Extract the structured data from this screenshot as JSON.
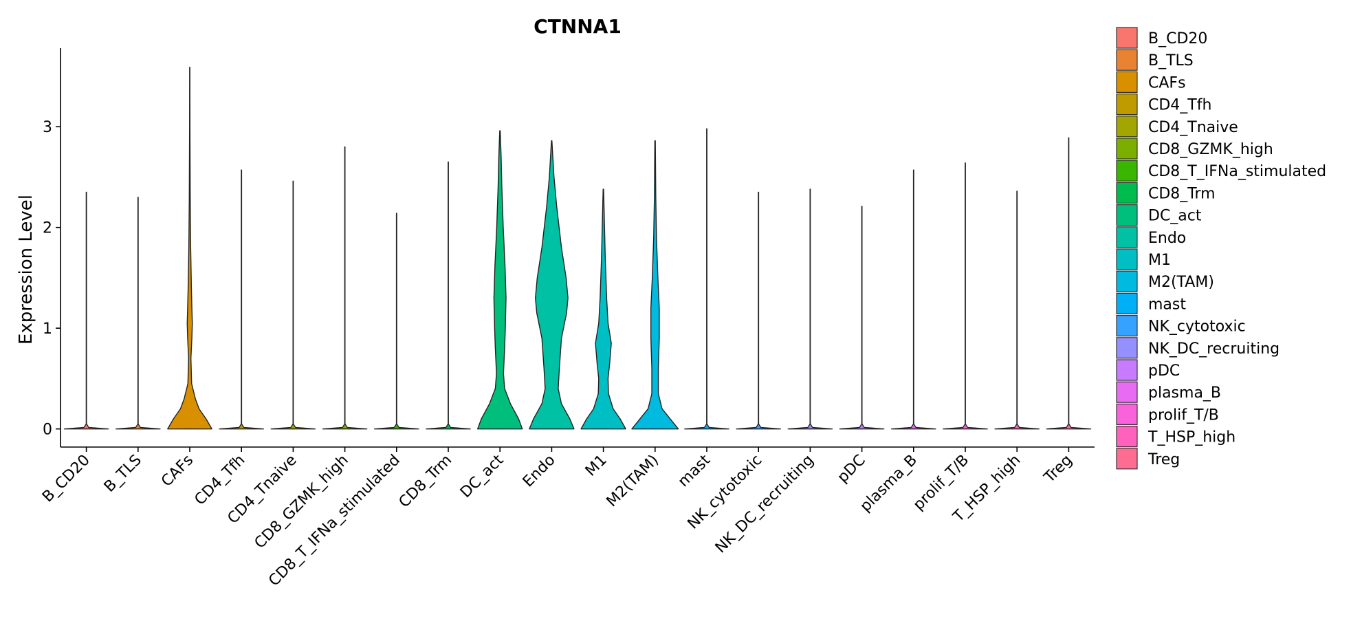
{
  "chart_data": {
    "type": "violin",
    "title": "CTNNA1",
    "xlabel": "",
    "ylabel": "Expression Level",
    "ylim": [
      -0.18,
      3.78
    ],
    "yticks": [
      0,
      1,
      2,
      3
    ],
    "grid": false,
    "legend_position": "right",
    "categories": [
      "B_CD20",
      "B_TLS",
      "CAFs",
      "CD4_Tfh",
      "CD4_Tnaive",
      "CD8_GZMK_high",
      "CD8_T_IFNa_stimulated",
      "CD8_Trm",
      "DC_act",
      "Endo",
      "M1",
      "M2(TAM)",
      "mast",
      "NK_cytotoxic",
      "NK_DC_recruiting",
      "pDC",
      "plasma_B",
      "prolif_T/B",
      "T_HSP_high",
      "Treg"
    ],
    "colors": [
      "#F8766D",
      "#EA8331",
      "#D89000",
      "#C09B00",
      "#A3A500",
      "#7CAE00",
      "#39B600",
      "#00BB4E",
      "#00BF7D",
      "#00C1A3",
      "#00BFC4",
      "#00BAE0",
      "#00B0F6",
      "#35A2FF",
      "#9590FF",
      "#C77CFF",
      "#E76BF3",
      "#FA62DB",
      "#FF62BC",
      "#FF6C91"
    ],
    "max_values": [
      2.35,
      2.3,
      3.59,
      2.57,
      2.46,
      2.8,
      2.14,
      2.65,
      2.96,
      2.86,
      2.38,
      2.86,
      2.98,
      2.35,
      2.38,
      2.21,
      2.57,
      2.64,
      2.36,
      2.89
    ],
    "density_profiles": [
      null,
      null,
      [
        [
          0,
          0.95
        ],
        [
          0.1,
          0.7
        ],
        [
          0.2,
          0.4
        ],
        [
          0.3,
          0.24
        ],
        [
          0.45,
          0.08
        ],
        [
          0.7,
          0.05
        ],
        [
          0.9,
          0.09
        ],
        [
          1.05,
          0.11
        ],
        [
          1.2,
          0.09
        ],
        [
          1.4,
          0.07
        ],
        [
          1.8,
          0.04
        ],
        [
          2.3,
          0.02
        ],
        [
          3.0,
          0.008
        ],
        [
          3.59,
          0.005
        ]
      ],
      null,
      null,
      null,
      null,
      null,
      [
        [
          0,
          0.96
        ],
        [
          0.1,
          0.8
        ],
        [
          0.25,
          0.45
        ],
        [
          0.4,
          0.2
        ],
        [
          0.55,
          0.15
        ],
        [
          0.8,
          0.2
        ],
        [
          1.0,
          0.23
        ],
        [
          1.3,
          0.26
        ],
        [
          1.6,
          0.22
        ],
        [
          2.0,
          0.14
        ],
        [
          2.4,
          0.08
        ],
        [
          2.7,
          0.05
        ],
        [
          2.96,
          0.01
        ]
      ],
      [
        [
          0,
          0.96
        ],
        [
          0.1,
          0.78
        ],
        [
          0.25,
          0.42
        ],
        [
          0.4,
          0.28
        ],
        [
          0.6,
          0.33
        ],
        [
          0.9,
          0.42
        ],
        [
          1.15,
          0.64
        ],
        [
          1.3,
          0.7
        ],
        [
          1.5,
          0.62
        ],
        [
          1.8,
          0.42
        ],
        [
          2.2,
          0.22
        ],
        [
          2.5,
          0.1
        ],
        [
          2.86,
          0.01
        ]
      ],
      [
        [
          0,
          0.96
        ],
        [
          0.1,
          0.72
        ],
        [
          0.2,
          0.42
        ],
        [
          0.35,
          0.22
        ],
        [
          0.5,
          0.2
        ],
        [
          0.65,
          0.27
        ],
        [
          0.85,
          0.34
        ],
        [
          1.05,
          0.2
        ],
        [
          1.3,
          0.14
        ],
        [
          1.7,
          0.08
        ],
        [
          2.0,
          0.05
        ],
        [
          2.38,
          0.01
        ]
      ],
      [
        [
          0,
          1.0
        ],
        [
          0.08,
          0.72
        ],
        [
          0.2,
          0.3
        ],
        [
          0.35,
          0.14
        ],
        [
          0.6,
          0.14
        ],
        [
          0.9,
          0.18
        ],
        [
          1.2,
          0.18
        ],
        [
          1.5,
          0.12
        ],
        [
          1.9,
          0.06
        ],
        [
          2.3,
          0.03
        ],
        [
          2.86,
          0.01
        ]
      ],
      null,
      null,
      null,
      null,
      null,
      null,
      null,
      null
    ]
  },
  "legend": {
    "items": [
      "B_CD20",
      "B_TLS",
      "CAFs",
      "CD4_Tfh",
      "CD4_Tnaive",
      "CD8_GZMK_high",
      "CD8_T_IFNa_stimulated",
      "CD8_Trm",
      "DC_act",
      "Endo",
      "M1",
      "M2(TAM)",
      "mast",
      "NK_cytotoxic",
      "NK_DC_recruiting",
      "pDC",
      "plasma_B",
      "prolif_T/B",
      "T_HSP_high",
      "Treg"
    ]
  }
}
